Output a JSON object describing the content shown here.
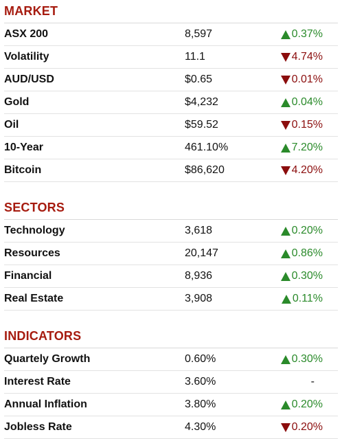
{
  "colors": {
    "heading": "#a61b0f",
    "up": "#2a8a2a",
    "down": "#8b0d0d"
  },
  "market": {
    "title": "MARKET",
    "rows": [
      {
        "name": "ASX 200",
        "value": "8,597",
        "change": "0.37%",
        "dir": "up"
      },
      {
        "name": "Volatility",
        "value": "11.1",
        "change": "4.74%",
        "dir": "down"
      },
      {
        "name": "AUD/USD",
        "value": "$0.65",
        "change": "0.01%",
        "dir": "down"
      },
      {
        "name": "Gold",
        "value": "$4,232",
        "change": "0.04%",
        "dir": "up"
      },
      {
        "name": "Oil",
        "value": "$59.52",
        "change": "0.15%",
        "dir": "down"
      },
      {
        "name": "10-Year",
        "value": "461.10%",
        "change": "7.20%",
        "dir": "up"
      },
      {
        "name": "Bitcoin",
        "value": "$86,620",
        "change": "4.20%",
        "dir": "down"
      }
    ]
  },
  "sectors": {
    "title": "SECTORS",
    "rows": [
      {
        "name": "Technology",
        "value": "3,618",
        "change": "0.20%",
        "dir": "up"
      },
      {
        "name": "Resources",
        "value": "20,147",
        "change": "0.86%",
        "dir": "up"
      },
      {
        "name": "Financial",
        "value": "8,936",
        "change": "0.30%",
        "dir": "up"
      },
      {
        "name": "Real Estate",
        "value": "3,908",
        "change": "0.11%",
        "dir": "up"
      }
    ]
  },
  "indicators": {
    "title": "INDICATORS",
    "rows": [
      {
        "name": "Quartely Growth",
        "value": "0.60%",
        "change": "0.30%",
        "dir": "up"
      },
      {
        "name": "Interest Rate",
        "value": "3.60%",
        "change": "-",
        "dir": "none"
      },
      {
        "name": "Annual Inflation",
        "value": "3.80%",
        "change": "0.20%",
        "dir": "up"
      },
      {
        "name": "Jobless Rate",
        "value": "4.30%",
        "change": "0.20%",
        "dir": "down"
      }
    ]
  }
}
